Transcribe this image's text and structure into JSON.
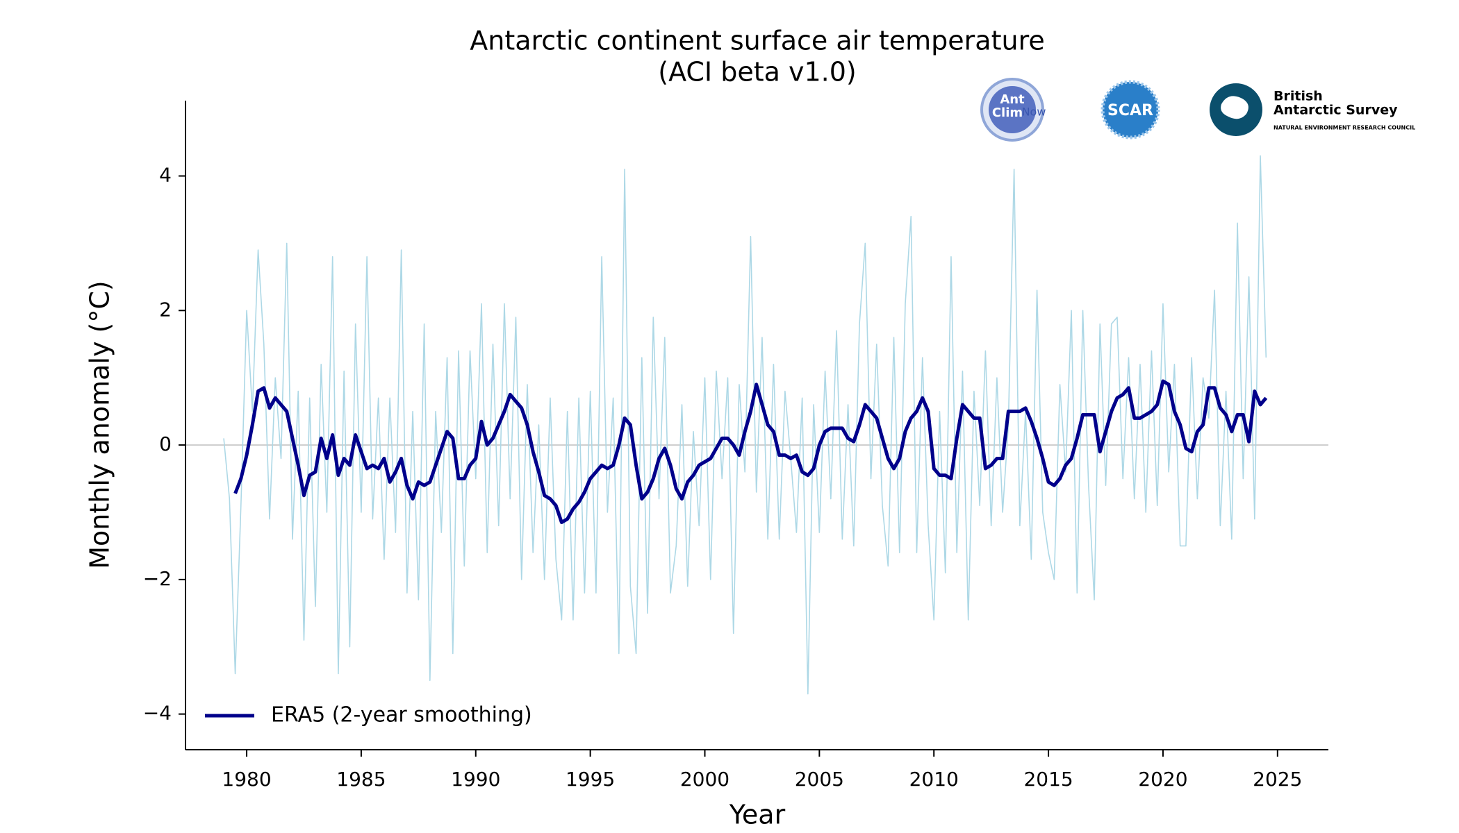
{
  "chart_data": {
    "type": "line",
    "title": "Antarctic continent surface air temperature",
    "subtitle": "(ACI beta v1.0)",
    "xlabel": "Year",
    "ylabel": "Monthly anomaly (°C)",
    "x": [
      1979,
      1979.25,
      1979.5,
      1979.75,
      1980,
      1980.25,
      1980.5,
      1980.75,
      1981,
      1981.25,
      1981.5,
      1981.75,
      1982,
      1982.25,
      1982.5,
      1982.75,
      1983,
      1983.25,
      1983.5,
      1983.75,
      1984,
      1984.25,
      1984.5,
      1984.75,
      1985,
      1985.25,
      1985.5,
      1985.75,
      1986,
      1986.25,
      1986.5,
      1986.75,
      1987,
      1987.25,
      1987.5,
      1987.75,
      1988,
      1988.25,
      1988.5,
      1988.75,
      1989,
      1989.25,
      1989.5,
      1989.75,
      1990,
      1990.25,
      1990.5,
      1990.75,
      1991,
      1991.25,
      1991.5,
      1991.75,
      1992,
      1992.25,
      1992.5,
      1992.75,
      1993,
      1993.25,
      1993.5,
      1993.75,
      1994,
      1994.25,
      1994.5,
      1994.75,
      1995,
      1995.25,
      1995.5,
      1995.75,
      1996,
      1996.25,
      1996.5,
      1996.75,
      1997,
      1997.25,
      1997.5,
      1997.75,
      1998,
      1998.25,
      1998.5,
      1998.75,
      1999,
      1999.25,
      1999.5,
      1999.75,
      2000,
      2000.25,
      2000.5,
      2000.75,
      2001,
      2001.25,
      2001.5,
      2001.75,
      2002,
      2002.25,
      2002.5,
      2002.75,
      2003,
      2003.25,
      2003.5,
      2003.75,
      2004,
      2004.25,
      2004.5,
      2004.75,
      2005,
      2005.25,
      2005.5,
      2005.75,
      2006,
      2006.25,
      2006.5,
      2006.75,
      2007,
      2007.25,
      2007.5,
      2007.75,
      2008,
      2008.25,
      2008.5,
      2008.75,
      2009,
      2009.25,
      2009.5,
      2009.75,
      2010,
      2010.25,
      2010.5,
      2010.75,
      2011,
      2011.25,
      2011.5,
      2011.75,
      2012,
      2012.25,
      2012.5,
      2012.75,
      2013,
      2013.25,
      2013.5,
      2013.75,
      2014,
      2014.25,
      2014.5,
      2014.75,
      2015,
      2015.25,
      2015.5,
      2015.75,
      2016,
      2016.25,
      2016.5,
      2016.75,
      2017,
      2017.25,
      2017.5,
      2017.75,
      2018,
      2018.25,
      2018.5,
      2018.75,
      2019,
      2019.25,
      2019.5,
      2019.75,
      2020,
      2020.25,
      2020.5,
      2020.75,
      2021,
      2021.25,
      2021.5,
      2021.75,
      2022,
      2022.25,
      2022.5,
      2022.75,
      2023,
      2023.25,
      2023.5,
      2023.75,
      2024,
      2024.25,
      2024.5
    ],
    "series": [
      {
        "color": "#add8e6",
        "width": 1.6,
        "values": [
          0.1,
          -0.8,
          -3.4,
          -0.9,
          2.0,
          0.5,
          2.9,
          1.5,
          -1.1,
          1.0,
          -0.2,
          3.0,
          -1.4,
          0.8,
          -2.9,
          0.7,
          -2.4,
          1.2,
          -1.0,
          2.8,
          -3.4,
          1.1,
          -3.0,
          1.8,
          -1.0,
          2.8,
          -1.1,
          0.7,
          -1.7,
          0.7,
          -1.3,
          2.9,
          -2.2,
          0.5,
          -2.3,
          1.8,
          -3.5,
          0.5,
          -1.3,
          1.3,
          -3.1,
          1.4,
          -1.8,
          1.4,
          -0.5,
          2.1,
          -1.6,
          1.5,
          -1.2,
          2.1,
          -0.8,
          1.9,
          -2.0,
          0.9,
          -1.6,
          0.3,
          -2.0,
          0.7,
          -1.7,
          -2.6,
          0.5,
          -2.6,
          0.7,
          -2.2,
          0.8,
          -2.2,
          2.8,
          -1.0,
          0.7,
          -3.1,
          4.1,
          -2.1,
          -3.1,
          1.3,
          -2.5,
          1.9,
          -0.8,
          1.6,
          -2.2,
          -1.5,
          0.6,
          -2.1,
          0.2,
          -1.2,
          1.0,
          -2.0,
          1.1,
          -0.5,
          1.0,
          -2.8,
          0.9,
          -0.4,
          3.1,
          -0.7,
          1.6,
          -1.4,
          1.2,
          -1.4,
          0.8,
          -0.2,
          -1.3,
          0.7,
          -3.7,
          0.6,
          -1.3,
          1.1,
          -0.8,
          1.7,
          -1.4,
          0.6,
          -1.5,
          1.8,
          3.0,
          -0.5,
          1.5,
          -0.9,
          -1.8,
          1.6,
          -1.6,
          2.1,
          3.4,
          -1.6,
          1.3,
          -1.2,
          -2.6,
          0.5,
          -1.9,
          2.8,
          -1.6,
          1.1,
          -2.6,
          0.8,
          -0.9,
          1.4,
          -1.2,
          1.0,
          -1.0,
          0.3,
          4.1,
          -1.2,
          0.5,
          -1.7,
          2.3,
          -1.0,
          -1.6,
          -2.0,
          0.9,
          -0.4,
          2.0,
          -2.2,
          2.0,
          -0.6,
          -2.3,
          1.8,
          -0.6,
          1.8,
          1.9,
          -0.5,
          1.3,
          -0.8,
          1.2,
          -1.0,
          1.4,
          -0.9,
          2.1,
          -0.4,
          1.2,
          -1.5,
          -1.5,
          1.3,
          -0.8,
          1.0,
          0.4,
          2.3,
          -1.2,
          0.8,
          -1.4,
          3.3,
          -0.5,
          2.5,
          -1.1,
          4.3,
          1.3
        ]
      },
      {
        "name": "ERA5 (2-year smoothing)",
        "color": "#00008b",
        "width": 5,
        "values": [
          null,
          null,
          -0.72,
          -0.5,
          -0.15,
          0.3,
          0.8,
          0.85,
          0.55,
          0.7,
          0.6,
          0.5,
          0.1,
          -0.3,
          -0.75,
          -0.45,
          -0.4,
          0.1,
          -0.2,
          0.15,
          -0.45,
          -0.2,
          -0.3,
          0.15,
          -0.1,
          -0.35,
          -0.3,
          -0.35,
          -0.2,
          -0.55,
          -0.4,
          -0.2,
          -0.6,
          -0.8,
          -0.55,
          -0.6,
          -0.55,
          -0.3,
          -0.05,
          0.2,
          0.1,
          -0.5,
          -0.5,
          -0.3,
          -0.2,
          0.35,
          0.0,
          0.1,
          0.3,
          0.5,
          0.75,
          0.65,
          0.55,
          0.3,
          -0.1,
          -0.4,
          -0.75,
          -0.8,
          -0.9,
          -1.15,
          -1.1,
          -0.95,
          -0.85,
          -0.7,
          -0.5,
          -0.4,
          -0.3,
          -0.35,
          -0.3,
          0.0,
          0.4,
          0.3,
          -0.3,
          -0.8,
          -0.7,
          -0.5,
          -0.2,
          -0.05,
          -0.3,
          -0.65,
          -0.8,
          -0.55,
          -0.45,
          -0.3,
          -0.25,
          -0.2,
          -0.05,
          0.1,
          0.1,
          0.0,
          -0.15,
          0.2,
          0.5,
          0.9,
          0.6,
          0.3,
          0.2,
          -0.15,
          -0.15,
          -0.2,
          -0.15,
          -0.4,
          -0.45,
          -0.35,
          0.0,
          0.2,
          0.25,
          0.25,
          0.25,
          0.1,
          0.05,
          0.3,
          0.6,
          0.5,
          0.4,
          0.1,
          -0.2,
          -0.35,
          -0.2,
          0.2,
          0.4,
          0.5,
          0.7,
          0.5,
          -0.35,
          -0.45,
          -0.45,
          -0.5,
          0.1,
          0.6,
          0.5,
          0.4,
          0.4,
          -0.35,
          -0.3,
          -0.2,
          -0.2,
          0.5,
          0.5,
          0.5,
          0.55,
          0.35,
          0.1,
          -0.2,
          -0.55,
          -0.6,
          -0.5,
          -0.3,
          -0.2,
          0.1,
          0.45,
          0.45,
          0.45,
          -0.1,
          0.2,
          0.5,
          0.7,
          0.75,
          0.85,
          0.4,
          0.4,
          0.45,
          0.5,
          0.6,
          0.95,
          0.9,
          0.5,
          0.3,
          -0.05,
          -0.1,
          0.2,
          0.3,
          0.85,
          0.85,
          0.55,
          0.45,
          0.2,
          0.45,
          0.45,
          0.05,
          0.8,
          0.6,
          0.7
        ]
      }
    ],
    "xlim": [
      1977.33,
      2027.22
    ],
    "ylim": [
      -4.53,
      5.12
    ],
    "xticks": [
      1980,
      1985,
      1990,
      1995,
      2000,
      2005,
      2010,
      2015,
      2020,
      2025
    ],
    "yticks": [
      {
        "value": -4,
        "label": "−4"
      },
      {
        "value": -2,
        "label": "−2"
      },
      0,
      2,
      4
    ],
    "reference_line": 0,
    "reference_color": "#cccccc",
    "legend": "lower left"
  },
  "logos": {
    "antclimnow": [
      "Ant",
      "Clim",
      "Now"
    ],
    "scar": "SCAR",
    "bas": [
      "British",
      "Antarctic Survey",
      "NATURAL ENVIRONMENT RESEARCH COUNCIL"
    ]
  }
}
